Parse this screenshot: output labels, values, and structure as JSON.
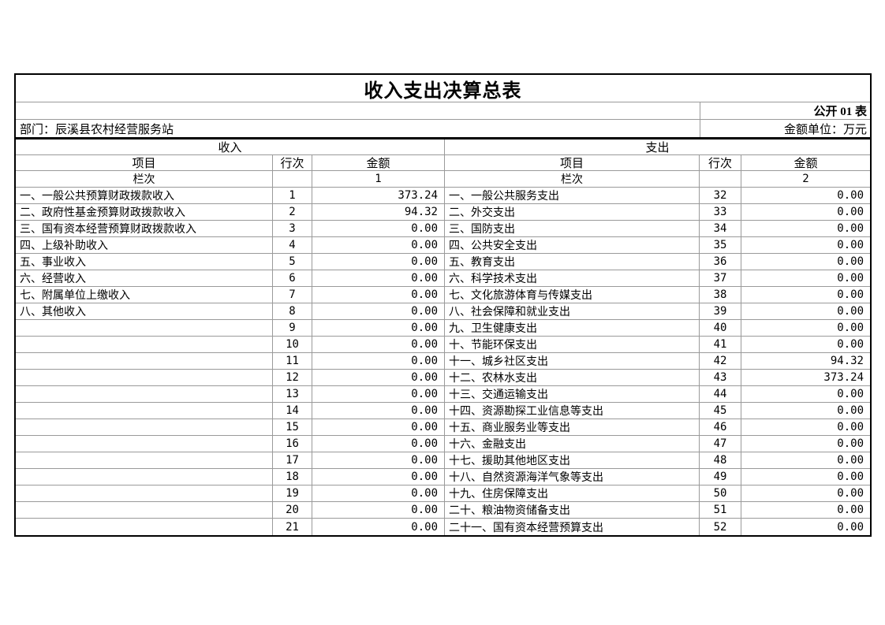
{
  "page": {
    "title": "收入支出决算总表",
    "table_label": "公开 01 表",
    "department_label": "部门：辰溪县农村经营服务站",
    "unit_label": "金额单位：万元"
  },
  "sections": {
    "income_header": "收入",
    "expense_header": "支出"
  },
  "column_headers": {
    "item": "项目",
    "row_no": "行次",
    "amount": "金额",
    "column_label": "栏次",
    "income_col_no": "1",
    "expense_col_no": "2"
  },
  "rows": [
    {
      "income_item": "一、一般公共预算财政拨款收入",
      "income_row": "1",
      "income_amount": "373.24",
      "expense_item": "一、一般公共服务支出",
      "expense_row": "32",
      "expense_amount": "0.00"
    },
    {
      "income_item": "二、政府性基金预算财政拨款收入",
      "income_row": "2",
      "income_amount": "94.32",
      "expense_item": "二、外交支出",
      "expense_row": "33",
      "expense_amount": "0.00"
    },
    {
      "income_item": "三、国有资本经营预算财政拨款收入",
      "income_row": "3",
      "income_amount": "0.00",
      "expense_item": "三、国防支出",
      "expense_row": "34",
      "expense_amount": "0.00"
    },
    {
      "income_item": "四、上级补助收入",
      "income_row": "4",
      "income_amount": "0.00",
      "expense_item": "四、公共安全支出",
      "expense_row": "35",
      "expense_amount": "0.00"
    },
    {
      "income_item": "五、事业收入",
      "income_row": "5",
      "income_amount": "0.00",
      "expense_item": "五、教育支出",
      "expense_row": "36",
      "expense_amount": "0.00"
    },
    {
      "income_item": "六、经营收入",
      "income_row": "6",
      "income_amount": "0.00",
      "expense_item": "六、科学技术支出",
      "expense_row": "37",
      "expense_amount": "0.00"
    },
    {
      "income_item": "七、附属单位上缴收入",
      "income_row": "7",
      "income_amount": "0.00",
      "expense_item": "七、文化旅游体育与传媒支出",
      "expense_row": "38",
      "expense_amount": "0.00"
    },
    {
      "income_item": "八、其他收入",
      "income_row": "8",
      "income_amount": "0.00",
      "expense_item": "八、社会保障和就业支出",
      "expense_row": "39",
      "expense_amount": "0.00"
    },
    {
      "income_item": "",
      "income_row": "9",
      "income_amount": "0.00",
      "expense_item": "九、卫生健康支出",
      "expense_row": "40",
      "expense_amount": "0.00"
    },
    {
      "income_item": "",
      "income_row": "10",
      "income_amount": "0.00",
      "expense_item": "十、节能环保支出",
      "expense_row": "41",
      "expense_amount": "0.00"
    },
    {
      "income_item": "",
      "income_row": "11",
      "income_amount": "0.00",
      "expense_item": "十一、城乡社区支出",
      "expense_row": "42",
      "expense_amount": "94.32"
    },
    {
      "income_item": "",
      "income_row": "12",
      "income_amount": "0.00",
      "expense_item": "十二、农林水支出",
      "expense_row": "43",
      "expense_amount": "373.24"
    },
    {
      "income_item": "",
      "income_row": "13",
      "income_amount": "0.00",
      "expense_item": "十三、交通运输支出",
      "expense_row": "44",
      "expense_amount": "0.00"
    },
    {
      "income_item": "",
      "income_row": "14",
      "income_amount": "0.00",
      "expense_item": "十四、资源勘探工业信息等支出",
      "expense_row": "45",
      "expense_amount": "0.00"
    },
    {
      "income_item": "",
      "income_row": "15",
      "income_amount": "0.00",
      "expense_item": "十五、商业服务业等支出",
      "expense_row": "46",
      "expense_amount": "0.00"
    },
    {
      "income_item": "",
      "income_row": "16",
      "income_amount": "0.00",
      "expense_item": "十六、金融支出",
      "expense_row": "47",
      "expense_amount": "0.00"
    },
    {
      "income_item": "",
      "income_row": "17",
      "income_amount": "0.00",
      "expense_item": "十七、援助其他地区支出",
      "expense_row": "48",
      "expense_amount": "0.00"
    },
    {
      "income_item": "",
      "income_row": "18",
      "income_amount": "0.00",
      "expense_item": "十八、自然资源海洋气象等支出",
      "expense_row": "49",
      "expense_amount": "0.00"
    },
    {
      "income_item": "",
      "income_row": "19",
      "income_amount": "0.00",
      "expense_item": "十九、住房保障支出",
      "expense_row": "50",
      "expense_amount": "0.00"
    },
    {
      "income_item": "",
      "income_row": "20",
      "income_amount": "0.00",
      "expense_item": "二十、粮油物资储备支出",
      "expense_row": "51",
      "expense_amount": "0.00"
    },
    {
      "income_item": "",
      "income_row": "21",
      "income_amount": "0.00",
      "expense_item": "二十一、国有资本经营预算支出",
      "expense_row": "52",
      "expense_amount": "0.00"
    }
  ]
}
